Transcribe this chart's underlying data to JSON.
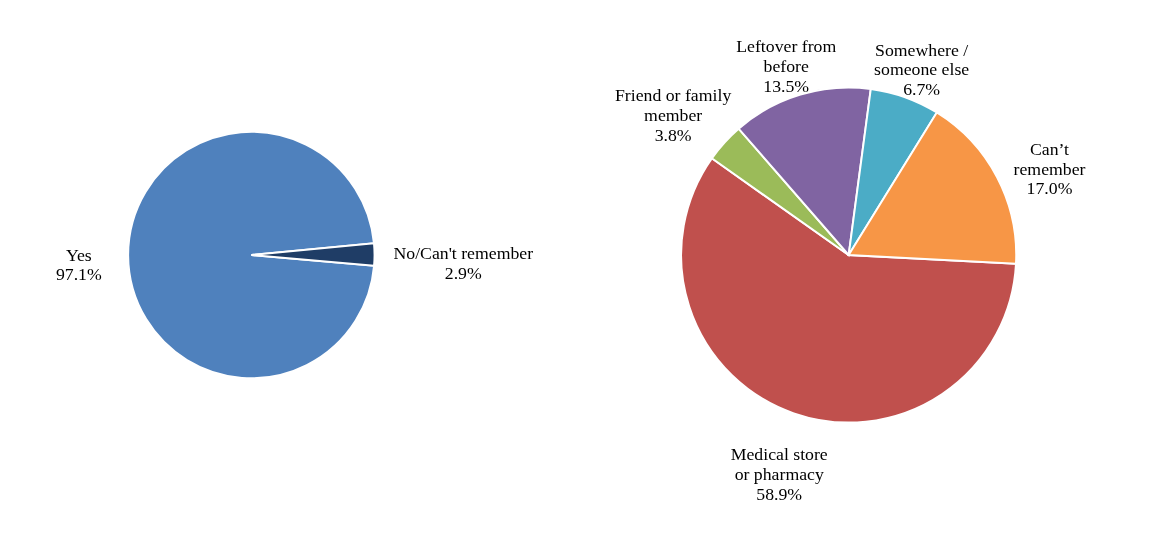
{
  "chart_data": [
    {
      "type": "pie",
      "categories": [
        "Yes",
        "No/Can't remember"
      ],
      "values": [
        97.1,
        2.9
      ],
      "colors": [
        "#4f81bd",
        "#1f3d66"
      ],
      "value_labels": [
        "97.1%",
        "2.9%"
      ],
      "legend": false
    },
    {
      "type": "pie",
      "categories": [
        "Medical store or pharmacy",
        "Friend or family member",
        "Leftover from before",
        "Somewhere / someone else",
        "Can’t remember"
      ],
      "values": [
        58.9,
        3.8,
        13.5,
        6.7,
        17.0
      ],
      "colors": [
        "#c0504d",
        "#9bbb59",
        "#8064a2",
        "#4bacc6",
        "#f79646"
      ],
      "value_labels": [
        "58.9%",
        "3.8%",
        "13.5%",
        "6.7%",
        "17.0%"
      ],
      "legend": false
    }
  ]
}
